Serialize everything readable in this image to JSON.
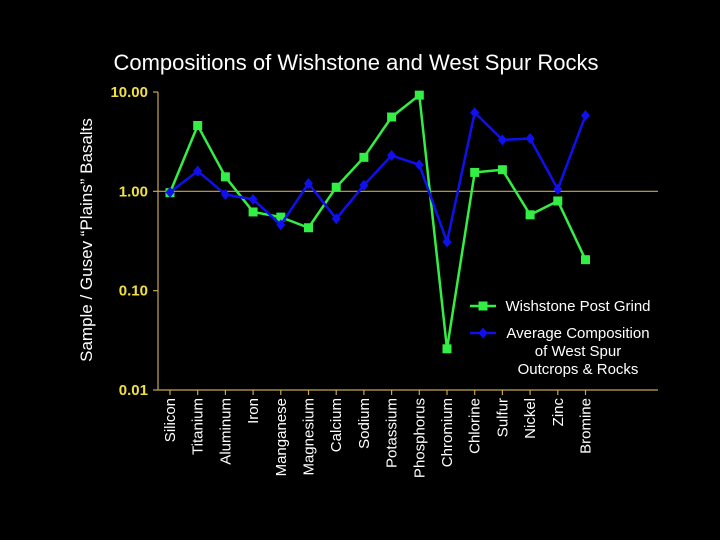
{
  "chart_data": {
    "type": "line",
    "title": "Compositions of Wishstone and West Spur Rocks",
    "ylabel": "Sample / Gusev “Plains” Basalts",
    "xlabel": "",
    "yscale": "log",
    "ylim": [
      0.01,
      10
    ],
    "yticks": [
      "0.01",
      "0.10",
      "1.00",
      "10.00"
    ],
    "reference_line": 1,
    "categories": [
      "Silicon",
      "Titanium",
      "Aluminum",
      "Iron",
      "Manganese",
      "Magnesium",
      "Calcium",
      "Sodium",
      "Potassium",
      "Phosphorus",
      "Chromium",
      "Chlorine",
      "Sulfur",
      "Nickel",
      "Zinc",
      "Bromine"
    ],
    "series": [
      {
        "name": "Wishstone Post Grind",
        "color": "#33ee44",
        "marker": "square",
        "values": [
          0.97,
          4.6,
          1.4,
          0.62,
          0.55,
          0.43,
          1.1,
          2.2,
          5.6,
          9.3,
          0.026,
          1.55,
          1.65,
          0.58,
          0.8,
          0.205
        ]
      },
      {
        "name": "Average Composition of West Spur Outcrops & Rocks",
        "name_lines": [
          "Average Composition",
          "of West Spur",
          "Outcrops & Rocks"
        ],
        "color": "#1010ee",
        "marker": "diamond",
        "values": [
          0.98,
          1.6,
          0.93,
          0.83,
          0.46,
          1.2,
          0.53,
          1.15,
          2.3,
          1.85,
          0.31,
          6.2,
          3.3,
          3.4,
          1.05,
          5.8
        ]
      }
    ],
    "legend_position": "bottom-right"
  }
}
